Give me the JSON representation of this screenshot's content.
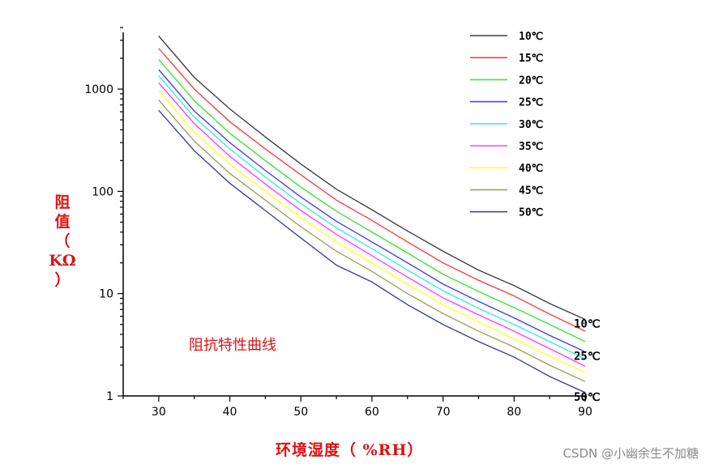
{
  "chart_data": {
    "type": "line",
    "title": "",
    "annotation": "阻抗特性曲线",
    "xlabel": "环境湿度（ %RH）",
    "ylabel": [
      "阻",
      "值",
      "（",
      "KΩ",
      "）"
    ],
    "x_scale": "linear",
    "y_scale": "log",
    "xlim": [
      25,
      90
    ],
    "ylim": [
      1,
      4000
    ],
    "x_ticks": [
      30,
      40,
      50,
      60,
      70,
      80,
      90
    ],
    "x_tick_labels": [
      "30",
      "40",
      "50",
      "60",
      "70",
      "80",
      "90"
    ],
    "y_ticks": [
      1,
      10,
      100,
      1000
    ],
    "y_tick_labels": [
      "1",
      "10",
      "100",
      "1000"
    ],
    "grid": false,
    "legend_position": "top-right",
    "x": [
      30,
      35,
      40,
      45,
      50,
      55,
      60,
      65,
      70,
      75,
      80,
      85,
      90
    ],
    "series": [
      {
        "name": "10℃",
        "color": "#404040",
        "values": [
          3300,
          1300,
          640,
          340,
          185,
          105,
          66,
          41,
          26,
          17,
          12,
          8,
          5.6
        ]
      },
      {
        "name": "15℃",
        "color": "#ff4040",
        "values": [
          2500,
          1000,
          480,
          260,
          145,
          82,
          52,
          32,
          20,
          13.5,
          9.5,
          6.3,
          4.3
        ]
      },
      {
        "name": "20℃",
        "color": "#40e040",
        "values": [
          1950,
          770,
          370,
          200,
          110,
          64,
          40,
          25,
          15.5,
          10.5,
          7.3,
          5,
          3.4
        ]
      },
      {
        "name": "25℃",
        "color": "#4040ff",
        "values": [
          1550,
          610,
          300,
          160,
          88,
          51,
          32,
          20,
          12.4,
          8.4,
          5.8,
          3.9,
          2.7
        ]
      },
      {
        "name": "30℃",
        "color": "#40e8e8",
        "values": [
          1350,
          530,
          260,
          138,
          76,
          44,
          27.5,
          17,
          10.7,
          7.2,
          5,
          3.4,
          2.3
        ]
      },
      {
        "name": "35℃",
        "color": "#ff40ff",
        "values": [
          1150,
          460,
          220,
          118,
          65,
          38,
          23.5,
          14.5,
          9.1,
          6.2,
          4.3,
          2.9,
          1.95
        ]
      },
      {
        "name": "40℃",
        "color": "#ffff30",
        "values": [
          970,
          380,
          185,
          100,
          55,
          32,
          20,
          12.3,
          7.8,
          5.3,
          3.6,
          2.45,
          1.7
        ]
      },
      {
        "name": "45℃",
        "color": "#a0a060",
        "values": [
          780,
          310,
          150,
          82,
          45,
          26,
          16.5,
          10,
          6.4,
          4.3,
          3,
          2,
          1.38
        ]
      },
      {
        "name": "50℃",
        "color": "#4040a0",
        "values": [
          620,
          250,
          120,
          65,
          35,
          19,
          13,
          7.8,
          5,
          3.4,
          2.4,
          1.55,
          1.08
        ]
      }
    ],
    "end_labels": [
      {
        "series": "10℃",
        "text": "10℃"
      },
      {
        "series": "25℃",
        "text": "25℃"
      },
      {
        "series": "50℃",
        "text": "50℃"
      }
    ]
  },
  "watermark": "CSDN @小幽余生不加糖"
}
